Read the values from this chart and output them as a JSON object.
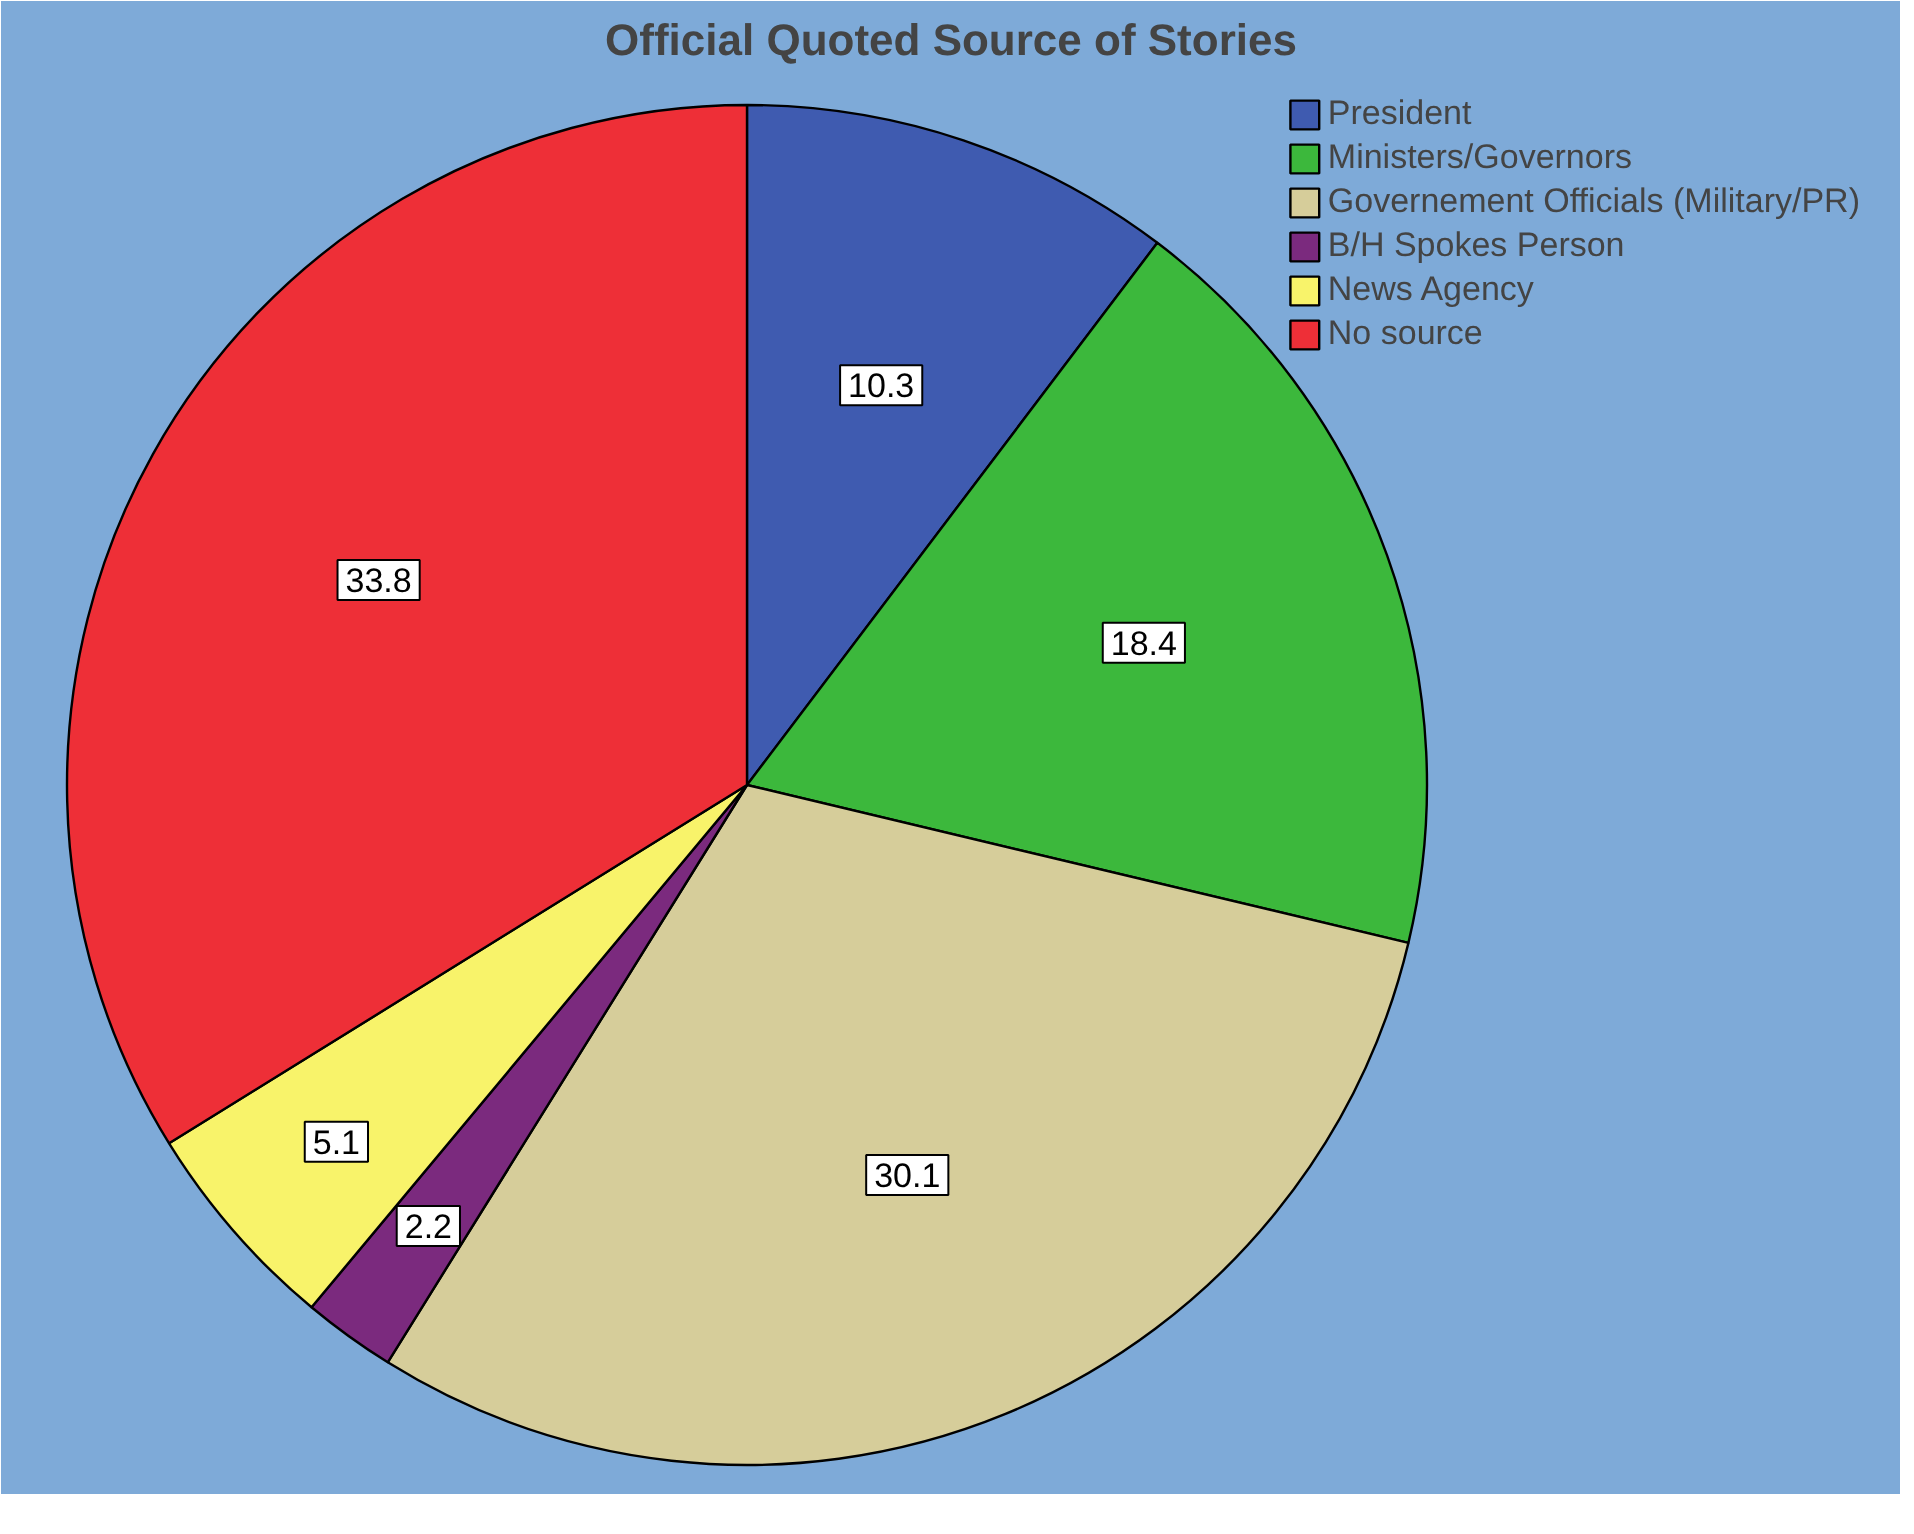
{
  "chart_data": {
    "type": "pie",
    "title": "Official Quoted Source of Stories",
    "categories": [
      "President",
      "Ministers/Governors",
      "Governement Officials (Military/PR)",
      "B/H Spokes Person",
      "News Agency",
      "No source"
    ],
    "values": [
      10.3,
      18.4,
      30.1,
      2.2,
      5.1,
      33.8
    ],
    "colors": [
      "#3f5bb0",
      "#3cb83c",
      "#d6cd9a",
      "#7b2a7e",
      "#f8f36a",
      "#ee2f37"
    ],
    "data_labels": true,
    "legend": "top right"
  }
}
